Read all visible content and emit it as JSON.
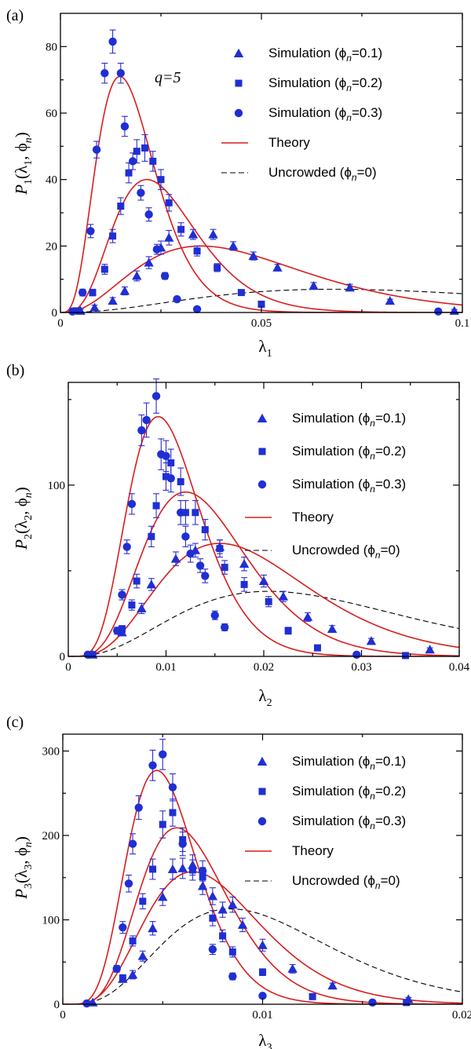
{
  "chart_data": [
    {
      "type": "scatter",
      "panel_label": "(a)",
      "annotation": "q=5",
      "xlabel_base": "λ",
      "xlabel_sub": "1",
      "ylabel_base": "P",
      "ylabel_sub": "1",
      "ylabel_args": "(λ",
      "ylabel_args_sub": "1",
      "ylabel_args2": ", ϕ",
      "ylabel_args2_sub": "n",
      "ylabel_close": ")",
      "xlim": [
        0,
        0.1
      ],
      "ylim": [
        0,
        90
      ],
      "xticks": [
        0,
        0.05,
        0.1
      ],
      "xtick_labels": [
        "0",
        "0.05",
        "0.1"
      ],
      "yticks": [
        0,
        20,
        40,
        60,
        80
      ],
      "ytick_labels": [
        "0",
        "20",
        "40",
        "60",
        "80"
      ],
      "legend_position": "top-right",
      "legend": [
        {
          "label": "Simulation (ϕ",
          "sub": "n",
          "tail": "=0.1)",
          "kind": "triangle"
        },
        {
          "label": "Simulation (ϕ",
          "sub": "n",
          "tail": "=0.2)",
          "kind": "square"
        },
        {
          "label": "Simulation (ϕ",
          "sub": "n",
          "tail": "=0.3)",
          "kind": "circle"
        },
        {
          "label": "Theory",
          "sub": "",
          "tail": "",
          "kind": "solid"
        },
        {
          "label": "Uncrowded (ϕ",
          "sub": "n",
          "tail": "=0)",
          "kind": "dashed"
        }
      ],
      "theory_curves": [
        {
          "peak_x": 0.035,
          "peak_y": 20,
          "alpha": 2.7
        },
        {
          "peak_x": 0.0215,
          "peak_y": 40,
          "alpha": 4.2
        },
        {
          "peak_x": 0.0148,
          "peak_y": 71,
          "alpha": 4.0
        }
      ],
      "uncrowded_curve": {
        "peak_x": 0.068,
        "peak_y": 7,
        "alpha": 2.5
      },
      "series": [
        {
          "kind": "triangle",
          "x": [
            0.005,
            0.0085,
            0.013,
            0.016,
            0.019,
            0.022,
            0.025,
            0.027,
            0.033,
            0.038,
            0.043,
            0.048,
            0.054,
            0.063,
            0.072,
            0.082,
            0.098
          ],
          "y": [
            0.5,
            1.5,
            3.5,
            6.5,
            11,
            15,
            19.5,
            22.5,
            23.5,
            23.5,
            20,
            17,
            13.5,
            8,
            7.5,
            3.5,
            0.5
          ],
          "err": [
            0.5,
            0.7,
            1,
            1.2,
            1.5,
            1.8,
            2,
            2.2,
            1.5,
            1.5,
            1.3,
            1.2,
            1,
            1,
            1,
            0.5,
            0.4
          ]
        },
        {
          "kind": "square",
          "x": [
            0.004,
            0.008,
            0.011,
            0.013,
            0.015,
            0.017,
            0.019,
            0.021,
            0.023,
            0.025,
            0.027,
            0.03,
            0.034,
            0.039,
            0.045,
            0.05
          ],
          "y": [
            0.5,
            6,
            13,
            23,
            32,
            42,
            48.5,
            49.5,
            45.5,
            40,
            33,
            25,
            18.5,
            13.5,
            6,
            2.5
          ],
          "err": [
            0.5,
            1,
            1.5,
            2,
            2.5,
            3,
            3.5,
            4,
            3,
            3,
            2.5,
            2,
            1.5,
            1.2,
            0.8,
            0.5
          ]
        },
        {
          "kind": "circle",
          "x": [
            0.003,
            0.0055,
            0.0075,
            0.009,
            0.011,
            0.013,
            0.015,
            0.016,
            0.018,
            0.02,
            0.022,
            0.024,
            0.026,
            0.029,
            0.034,
            0.094
          ],
          "y": [
            0.3,
            6,
            24.5,
            49,
            72,
            81.5,
            72,
            56,
            45.5,
            36,
            29.5,
            19,
            11,
            4,
            1,
            0.3
          ],
          "err": [
            0.3,
            1,
            2,
            2.5,
            3,
            3.5,
            3,
            3,
            2.5,
            2.2,
            2,
            1.5,
            1,
            0.6,
            0.4,
            0.2
          ]
        }
      ]
    },
    {
      "type": "scatter",
      "panel_label": "(b)",
      "annotation": "",
      "xlabel_base": "λ",
      "xlabel_sub": "2",
      "ylabel_base": "P",
      "ylabel_sub": "2",
      "ylabel_args": "(λ",
      "ylabel_args_sub": "2",
      "ylabel_args2": ", ϕ",
      "ylabel_args2_sub": "n",
      "ylabel_close": ")",
      "xlim": [
        0,
        0.04
      ],
      "ylim": [
        0,
        160
      ],
      "xticks": [
        0,
        0.01,
        0.02,
        0.03,
        0.04
      ],
      "xtick_labels": [
        "0",
        "0.01",
        "0.02",
        "0.03",
        "0.04"
      ],
      "yticks": [
        0,
        100
      ],
      "ytick_labels": [
        "0",
        "100"
      ],
      "legend_position": "top-right",
      "legend": [
        {
          "label": "Simulation (ϕ",
          "sub": "n",
          "tail": "=0.1)",
          "kind": "triangle"
        },
        {
          "label": "Simulation (ϕ",
          "sub": "n",
          "tail": "=0.2)",
          "kind": "square"
        },
        {
          "label": "Simulation (ϕ",
          "sub": "n",
          "tail": "=0.3)",
          "kind": "circle"
        },
        {
          "label": "Theory",
          "sub": "",
          "tail": "",
          "kind": "solid"
        },
        {
          "label": "Uncrowded (ϕ",
          "sub": "n",
          "tail": "=0)",
          "kind": "dashed"
        }
      ],
      "theory_curves": [
        {
          "peak_x": 0.0155,
          "peak_y": 66,
          "alpha": 4.0
        },
        {
          "peak_x": 0.012,
          "peak_y": 96,
          "alpha": 5.0
        },
        {
          "peak_x": 0.0092,
          "peak_y": 140,
          "alpha": 6.0
        }
      ],
      "uncrowded_curve": {
        "peak_x": 0.0205,
        "peak_y": 38,
        "alpha": 3.0
      },
      "series": [
        {
          "kind": "triangle",
          "x": [
            0.0025,
            0.0055,
            0.0075,
            0.0085,
            0.011,
            0.013,
            0.0155,
            0.018,
            0.02,
            0.022,
            0.0245,
            0.027,
            0.031,
            0.037
          ],
          "y": [
            1,
            14,
            28,
            42,
            57,
            62,
            64,
            54,
            44,
            35,
            23,
            16,
            9,
            4
          ],
          "err": [
            0.5,
            2,
            3,
            3.5,
            4,
            4,
            4,
            4,
            3.5,
            3,
            2.5,
            2,
            1.5,
            1
          ]
        },
        {
          "kind": "square",
          "x": [
            0.0025,
            0.0055,
            0.0065,
            0.007,
            0.0085,
            0.009,
            0.01,
            0.0105,
            0.0115,
            0.012,
            0.013,
            0.014,
            0.0155,
            0.016,
            0.018,
            0.0205,
            0.0225,
            0.0255,
            0.0345
          ],
          "y": [
            1,
            16,
            30,
            44,
            70,
            88,
            105,
            113,
            102,
            84,
            84,
            74,
            63,
            52,
            42,
            32,
            15,
            5,
            0.5
          ],
          "err": [
            0.5,
            2,
            3,
            4,
            6,
            7,
            8,
            8,
            8,
            7,
            7,
            6,
            5,
            4,
            4,
            3,
            2,
            1,
            0.3
          ]
        },
        {
          "kind": "circle",
          "x": [
            0.002,
            0.005,
            0.0055,
            0.006,
            0.0065,
            0.0075,
            0.008,
            0.009,
            0.0095,
            0.01,
            0.0105,
            0.0115,
            0.012,
            0.0125,
            0.0135,
            0.014,
            0.015,
            0.016,
            0.0295
          ],
          "y": [
            1,
            15,
            36,
            64,
            89,
            132,
            138,
            152,
            118,
            117,
            104,
            84,
            70,
            60,
            53,
            47,
            24,
            17,
            1
          ],
          "err": [
            0.5,
            2,
            3,
            4,
            6,
            9,
            10,
            10,
            9,
            9,
            8,
            7,
            6,
            5,
            4,
            4,
            2.5,
            2,
            0.5
          ]
        }
      ]
    },
    {
      "type": "scatter",
      "panel_label": "(c)",
      "annotation": "",
      "xlabel_base": "λ",
      "xlabel_sub": "3",
      "ylabel_base": "P",
      "ylabel_sub": "3",
      "ylabel_args": "(λ",
      "ylabel_args_sub": "3",
      "ylabel_args2": ", ϕ",
      "ylabel_args2_sub": "n",
      "ylabel_close": ")",
      "xlim": [
        0,
        0.02
      ],
      "ylim": [
        0,
        320
      ],
      "xticks": [
        0,
        0.01,
        0.02
      ],
      "xtick_labels": [
        "0",
        "0.01",
        "0.02"
      ],
      "yticks": [
        0,
        100,
        200,
        300
      ],
      "ytick_labels": [
        "0",
        "100",
        "200",
        "300"
      ],
      "legend_position": "top-right",
      "legend": [
        {
          "label": "Simulation (ϕ",
          "sub": "n",
          "tail": "=0.1)",
          "kind": "triangle"
        },
        {
          "label": "Simulation (ϕ",
          "sub": "n",
          "tail": "=0.2)",
          "kind": "square"
        },
        {
          "label": "Simulation (ϕ",
          "sub": "n",
          "tail": "=0.3)",
          "kind": "circle"
        },
        {
          "label": "Theory",
          "sub": "",
          "tail": "",
          "kind": "solid"
        },
        {
          "label": "Uncrowded (ϕ",
          "sub": "n",
          "tail": "=0)",
          "kind": "dashed"
        }
      ],
      "theory_curves": [
        {
          "peak_x": 0.0065,
          "peak_y": 157,
          "alpha": 5.0
        },
        {
          "peak_x": 0.0057,
          "peak_y": 209,
          "alpha": 6.5
        },
        {
          "peak_x": 0.0047,
          "peak_y": 277,
          "alpha": 7.0
        }
      ],
      "uncrowded_curve": {
        "peak_x": 0.0084,
        "peak_y": 113,
        "alpha": 4.0
      },
      "series": [
        {
          "kind": "triangle",
          "x": [
            0.0015,
            0.003,
            0.0035,
            0.004,
            0.0045,
            0.005,
            0.0055,
            0.006,
            0.0065,
            0.007,
            0.0075,
            0.008,
            0.0085,
            0.009,
            0.01,
            0.0115,
            0.0135,
            0.0173
          ],
          "y": [
            2,
            30,
            35,
            57,
            90,
            127,
            160,
            161,
            165,
            140,
            128,
            112,
            118,
            94,
            70,
            42,
            22,
            6
          ],
          "err": [
            1,
            4,
            5,
            6,
            8,
            10,
            12,
            12,
            12,
            10,
            10,
            9,
            9,
            8,
            7,
            5,
            3,
            2
          ]
        },
        {
          "kind": "square",
          "x": [
            0.003,
            0.0035,
            0.004,
            0.0045,
            0.005,
            0.0055,
            0.006,
            0.0065,
            0.007,
            0.0075,
            0.008,
            0.0085,
            0.01,
            0.0125,
            0.0172
          ],
          "y": [
            31,
            75,
            122,
            160,
            213,
            227,
            195,
            159,
            151,
            102,
            81,
            62,
            38,
            9,
            2
          ],
          "err": [
            4,
            6,
            9,
            12,
            16,
            16,
            14,
            12,
            11,
            9,
            7,
            6,
            4,
            2,
            1
          ]
        },
        {
          "kind": "circle",
          "x": [
            0.0012,
            0.0027,
            0.003,
            0.0033,
            0.0035,
            0.0038,
            0.0045,
            0.005,
            0.0055,
            0.006,
            0.007,
            0.0075,
            0.0085,
            0.01,
            0.0155
          ],
          "y": [
            1,
            42,
            91,
            143,
            190,
            233,
            283,
            296,
            257,
            190,
            158,
            65,
            33,
            10,
            2
          ],
          "err": [
            0.5,
            4,
            7,
            10,
            12,
            14,
            18,
            18,
            16,
            14,
            12,
            6,
            4,
            2,
            1
          ]
        }
      ]
    }
  ]
}
